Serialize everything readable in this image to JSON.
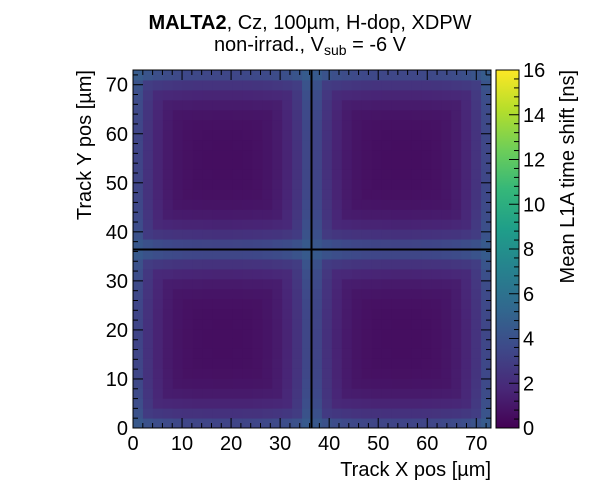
{
  "chart_data": {
    "type": "heatmap",
    "title": {
      "bold": "MALTA2",
      "rest": ", Cz, 100µm, H-dop, XDPW",
      "line2_prefix": "non-irrad., V",
      "line2_subscript": "sub",
      "line2_suffix": " = -6 V"
    },
    "xlabel": "Track X pos [µm]",
    "ylabel": "Track Y pos [µm]",
    "zlabel": "Mean L1A time shift [ns]",
    "xlim": [
      0,
      73
    ],
    "ylim": [
      0,
      73
    ],
    "zlim": [
      0,
      16
    ],
    "x_ticks": [
      0,
      10,
      20,
      30,
      40,
      50,
      60,
      70
    ],
    "y_ticks": [
      0,
      10,
      20,
      30,
      40,
      50,
      60,
      70
    ],
    "z_ticks": [
      0,
      2,
      4,
      6,
      8,
      10,
      12,
      14,
      16
    ],
    "pixel_pitch": 36.4,
    "pixel_boundaries": {
      "x": 36.4,
      "y": 36.4
    },
    "n_bins": [
      36,
      36
    ],
    "value_center": 0.6,
    "value_edge": 3.6,
    "value_corner": 5.0,
    "colormap": [
      "#440154",
      "#482878",
      "#3e4989",
      "#31688e",
      "#26828e",
      "#1f9e89",
      "#35b779",
      "#6ece58",
      "#b5de2b",
      "#fde725"
    ]
  }
}
